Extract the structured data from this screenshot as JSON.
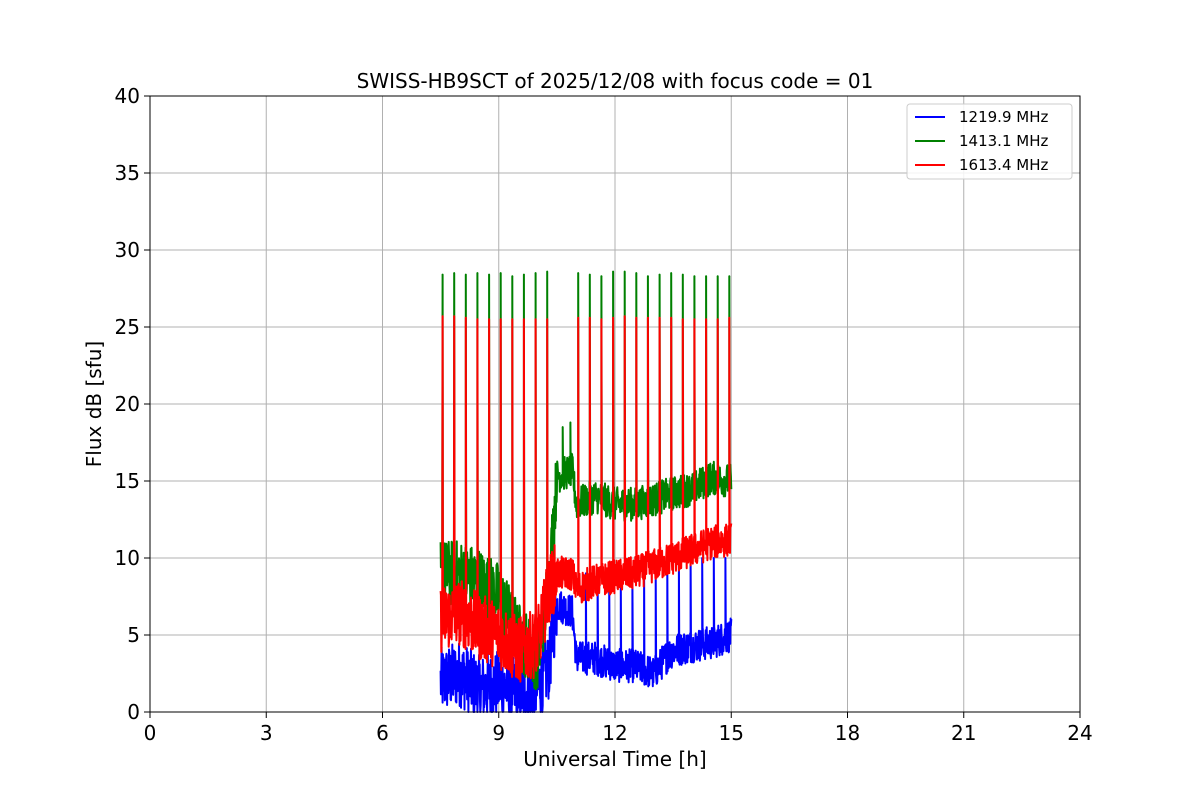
{
  "chart_data": {
    "type": "line",
    "title": "SWISS-HB9SCT of 2025/12/08 with focus code = 01",
    "xlabel": "Universal Time [h]",
    "ylabel": "Flux dB [sfu]",
    "xlim": [
      0,
      24
    ],
    "ylim": [
      0,
      40
    ],
    "xticks": [
      0,
      3,
      6,
      9,
      12,
      15,
      18,
      21,
      24
    ],
    "yticks": [
      0,
      5,
      10,
      15,
      20,
      25,
      30,
      35,
      40
    ],
    "grid": true,
    "legend_position": "top-right",
    "series": [
      {
        "name": "1219.9 MHz",
        "color": "#0000ff",
        "baseline_x": [
          7.5,
          8.0,
          8.5,
          9.0,
          9.5,
          10.0,
          10.3,
          10.5,
          10.9,
          11.0,
          11.5,
          12.0,
          12.5,
          13.0,
          13.3,
          13.5,
          14.0,
          14.5,
          15.0
        ],
        "baseline_y": [
          2.0,
          2.5,
          1.5,
          1.8,
          1.2,
          1.5,
          3.0,
          7.0,
          6.5,
          3.5,
          3.5,
          3.0,
          3.0,
          2.5,
          3.5,
          4.0,
          4.3,
          4.5,
          5.0
        ],
        "spike_x": [
          11.25,
          11.55,
          11.85,
          12.15,
          12.45,
          12.75,
          13.05,
          13.35,
          13.65,
          13.95,
          14.25,
          14.55,
          14.85
        ],
        "spike_y": [
          9.0,
          9.0,
          9.0,
          8.5,
          8.5,
          9.0,
          9.0,
          9.5,
          10.0,
          10.0,
          10.0,
          10.0,
          10.0
        ]
      },
      {
        "name": "1413.1 MHz",
        "color": "#008000",
        "baseline_x": [
          7.5,
          8.0,
          8.5,
          9.0,
          9.5,
          10.0,
          10.3,
          10.5,
          10.9,
          11.0,
          11.5,
          12.0,
          12.5,
          13.0,
          13.5,
          14.0,
          14.5,
          15.0
        ],
        "baseline_y": [
          9.0,
          9.0,
          8.5,
          7.5,
          5.0,
          3.5,
          8.5,
          15.3,
          15.7,
          13.5,
          14.0,
          13.5,
          13.5,
          13.8,
          14.2,
          14.5,
          15.2,
          15.0
        ],
        "spike_x": [
          7.55,
          7.85,
          8.15,
          8.45,
          8.75,
          9.05,
          9.35,
          9.65,
          9.95,
          10.25,
          11.05,
          11.35,
          11.65,
          11.95,
          12.25,
          12.55,
          12.85,
          13.15,
          13.45,
          13.75,
          14.05,
          14.35,
          14.65,
          14.95
        ],
        "spike_y": [
          28.4,
          28.5,
          28.4,
          28.5,
          28.4,
          28.5,
          28.3,
          28.4,
          28.5,
          28.6,
          28.5,
          28.4,
          28.3,
          28.6,
          28.6,
          28.5,
          28.3,
          28.4,
          28.5,
          28.4,
          28.3,
          28.3,
          28.3,
          28.3
        ],
        "extra_spikes": [
          [
            10.65,
            18.5
          ],
          [
            10.85,
            18.8
          ]
        ]
      },
      {
        "name": "1613.4 MHz",
        "color": "#ff0000",
        "baseline_x": [
          7.5,
          8.0,
          8.5,
          9.0,
          9.5,
          10.0,
          10.3,
          10.5,
          10.9,
          11.0,
          11.5,
          12.0,
          12.5,
          13.0,
          13.5,
          14.0,
          14.5,
          15.0
        ],
        "baseline_y": [
          6.0,
          6.5,
          5.5,
          5.0,
          4.0,
          4.5,
          8.0,
          9.0,
          9.0,
          8.0,
          8.5,
          8.8,
          9.0,
          9.5,
          10.0,
          10.5,
          11.0,
          11.2
        ],
        "spike_x": [
          7.55,
          7.85,
          8.15,
          8.45,
          8.75,
          9.05,
          9.35,
          9.65,
          9.95,
          10.25,
          11.05,
          11.35,
          11.65,
          11.95,
          12.25,
          12.55,
          12.85,
          13.15,
          13.45,
          13.75,
          14.05,
          14.35,
          14.65,
          14.95
        ],
        "spike_y": [
          25.7,
          25.7,
          25.6,
          25.5,
          25.5,
          25.5,
          25.5,
          25.5,
          25.5,
          25.5,
          25.6,
          25.6,
          25.5,
          25.6,
          25.7,
          25.6,
          25.6,
          25.6,
          25.6,
          25.5,
          25.5,
          25.5,
          25.5,
          25.6
        ]
      }
    ]
  }
}
